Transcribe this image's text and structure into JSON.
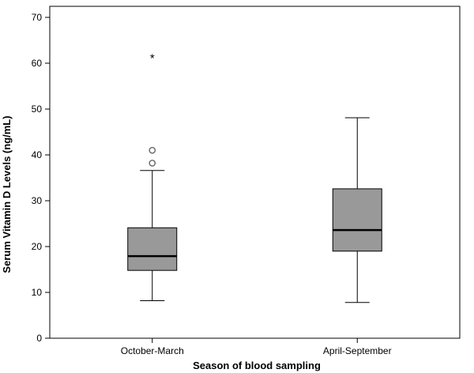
{
  "chart_data": {
    "type": "boxplot",
    "xlabel": "Season of blood sampling",
    "ylabel": "Serum Vitamin D Levels (ng/mL)",
    "ylim": [
      0,
      70
    ],
    "yticks": [
      0,
      10,
      20,
      30,
      40,
      50,
      60,
      70
    ],
    "grid": false,
    "legend": "none",
    "box_color": "#999999",
    "categories": [
      "October-March",
      "April-September"
    ],
    "boxes": [
      {
        "category": "October-March",
        "whisker_low": 8.2,
        "q1": 14.8,
        "median": 17.9,
        "q3": 24.1,
        "whisker_high": 36.6,
        "outliers": [
          38.2,
          41.0
        ],
        "extremes": [
          61.5
        ],
        "extreme_marker": "*"
      },
      {
        "category": "April-September",
        "whisker_low": 7.8,
        "q1": 19.0,
        "median": 23.6,
        "q3": 32.6,
        "whisker_high": 48.1,
        "outliers": [],
        "extremes": []
      }
    ]
  }
}
